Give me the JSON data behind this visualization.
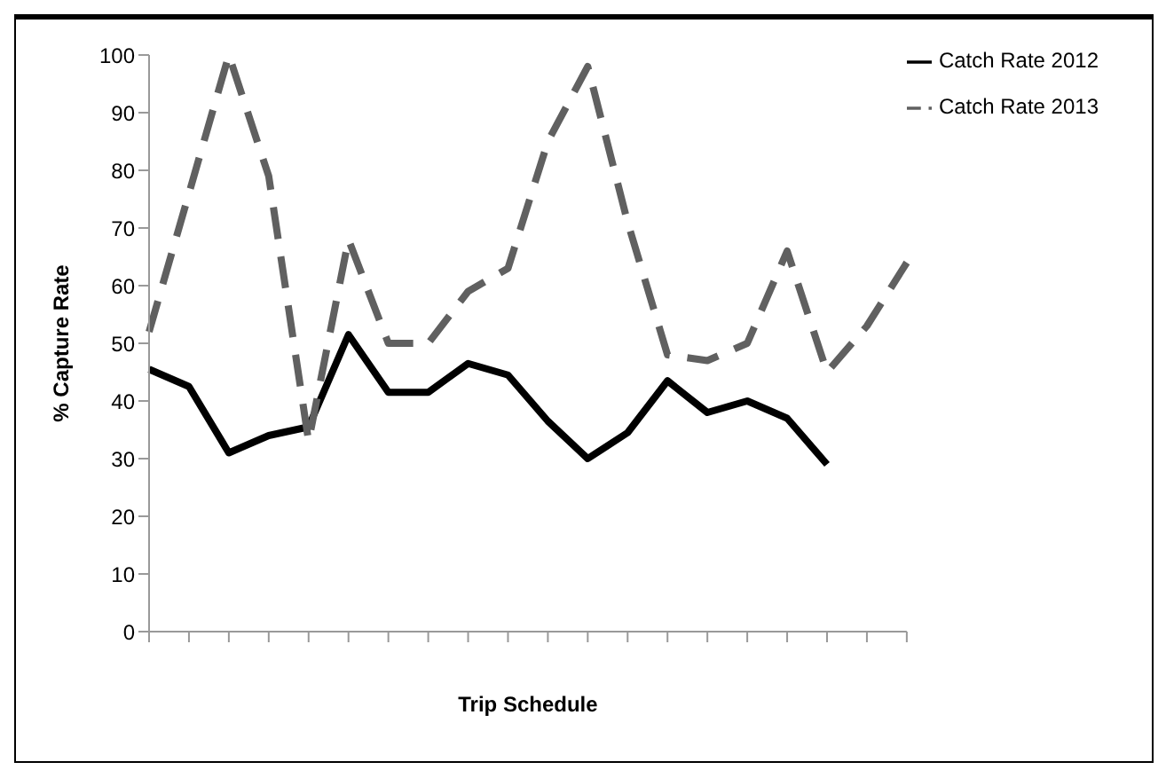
{
  "chart_data": {
    "type": "line",
    "xlabel": "Trip Schedule",
    "ylabel": "% Capture Rate",
    "categories": [
      null,
      null,
      null,
      null,
      null,
      null,
      null,
      null,
      null,
      null,
      null,
      null,
      null,
      null,
      null,
      null,
      null,
      null,
      null,
      null
    ],
    "series": [
      {
        "name": "Catch Rate 2012",
        "color": "#000000",
        "line_style": "solid",
        "values": [
          45.5,
          42.5,
          31,
          34,
          35.5,
          51.5,
          41.5,
          41.5,
          46.5,
          44.5,
          36.5,
          30,
          34.5,
          43.5,
          38,
          40,
          37,
          29,
          null,
          null
        ]
      },
      {
        "name": "Catch Rate 2013",
        "color": "#606060",
        "line_style": "dashed",
        "values": [
          52,
          76,
          100,
          79,
          33,
          68,
          50,
          50,
          59,
          63,
          85,
          98,
          71,
          48,
          47,
          50,
          66,
          45,
          53,
          64
        ]
      }
    ],
    "ylim": [
      0,
      100
    ],
    "yticks": [
      0,
      10,
      20,
      30,
      40,
      50,
      60,
      70,
      80,
      90,
      100
    ],
    "grid": false,
    "legend": "top right",
    "marker": "none"
  }
}
